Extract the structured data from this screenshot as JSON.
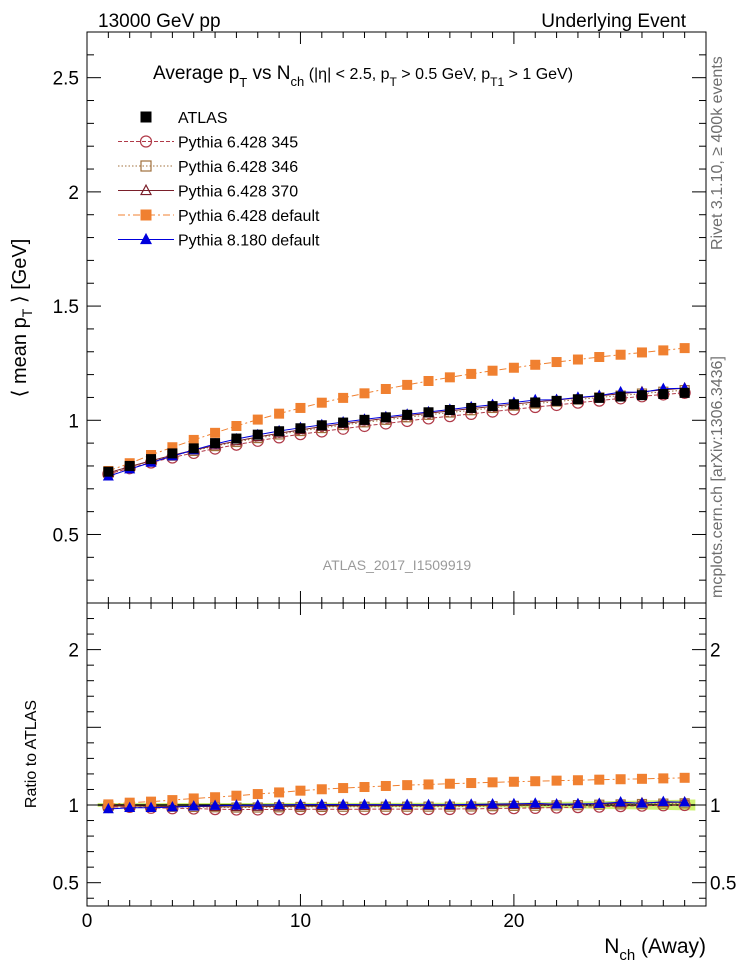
{
  "header": {
    "left": "13000 GeV pp",
    "right": "Underlying Event"
  },
  "side_labels": {
    "rivet": "Rivet 3.1.10, ≥ 400k events",
    "mcplots": "mcplots.cern.ch [arXiv:1306.3436]"
  },
  "watermark": "ATLAS_2017_I1509919",
  "chart_data": {
    "type": "line",
    "title": {
      "prefix": "Average p",
      "sub1": "T",
      "mid": " vs N",
      "sub2": "ch",
      "paren_a": " (|η| < 2.5, p",
      "sub3": "T",
      "paren_b": " > 0.5 GeV, p",
      "sub4": "T1",
      "paren_c": " > 1 GeV)"
    },
    "ylabel_main": "⟨ mean p",
    "ylabel_main_sub": "T",
    "ylabel_main_tail": " ⟩ [GeV]",
    "ylabel_ratio": "Ratio to ATLAS",
    "xlabel": "N",
    "xlabel_sub": "ch",
    "xlabel_tail": " (Away)",
    "xlim": [
      0,
      29
    ],
    "ylim_main": [
      0.2,
      2.7
    ],
    "ylim_ratio": [
      0.35,
      2.3
    ],
    "x_ticks": [
      "0",
      "10",
      "20"
    ],
    "y_ticks_main": [
      "0.5",
      "1",
      "1.5",
      "2",
      "2.5"
    ],
    "y_ticks_ratio": [
      "0.5",
      "1",
      "2"
    ],
    "x": [
      1,
      2,
      3,
      4,
      5,
      6,
      7,
      8,
      9,
      10,
      11,
      12,
      13,
      14,
      15,
      16,
      17,
      18,
      19,
      20,
      21,
      22,
      23,
      24,
      25,
      26,
      27,
      28
    ],
    "series": [
      {
        "name": "ATLAS",
        "marker": "square-filled",
        "color": "#000000",
        "line": "none",
        "values": [
          0.775,
          0.8,
          0.83,
          0.855,
          0.877,
          0.9,
          0.92,
          0.937,
          0.952,
          0.965,
          0.978,
          0.99,
          1.002,
          1.013,
          1.024,
          1.035,
          1.045,
          1.054,
          1.062,
          1.07,
          1.078,
          1.085,
          1.092,
          1.098,
          1.104,
          1.11,
          1.115,
          1.12
        ]
      },
      {
        "name": "Pythia 6.428 345",
        "marker": "circle-open",
        "color": "#b03a48",
        "line": "dashed",
        "values": [
          0.765,
          0.79,
          0.815,
          0.837,
          0.857,
          0.876,
          0.893,
          0.91,
          0.925,
          0.939,
          0.951,
          0.963,
          0.975,
          0.986,
          0.997,
          1.008,
          1.018,
          1.028,
          1.038,
          1.048,
          1.058,
          1.067,
          1.077,
          1.086,
          1.096,
          1.105,
          1.113,
          1.12
        ]
      },
      {
        "name": "Pythia 6.428 346",
        "marker": "square-open",
        "color": "#a0703c",
        "line": "dotted",
        "values": [
          0.77,
          0.796,
          0.821,
          0.845,
          0.866,
          0.887,
          0.905,
          0.922,
          0.938,
          0.953,
          0.966,
          0.979,
          0.991,
          1.002,
          1.013,
          1.024,
          1.034,
          1.044,
          1.054,
          1.064,
          1.073,
          1.082,
          1.091,
          1.1,
          1.108,
          1.117,
          1.125,
          1.132
        ]
      },
      {
        "name": "Pythia 6.428 370",
        "marker": "triangle-open",
        "color": "#7a1f2a",
        "line": "solid",
        "values": [
          0.77,
          0.797,
          0.823,
          0.847,
          0.869,
          0.89,
          0.909,
          0.927,
          0.943,
          0.958,
          0.972,
          0.985,
          0.997,
          1.009,
          1.02,
          1.031,
          1.041,
          1.051,
          1.061,
          1.071,
          1.08,
          1.089,
          1.098,
          1.107,
          1.116,
          1.125,
          1.133,
          1.141
        ]
      },
      {
        "name": "Pythia 6.428 default",
        "marker": "square-filled",
        "color": "#f08030",
        "line": "dashdot",
        "values": [
          0.778,
          0.812,
          0.848,
          0.882,
          0.914,
          0.945,
          0.975,
          1.003,
          1.029,
          1.054,
          1.077,
          1.098,
          1.118,
          1.137,
          1.155,
          1.172,
          1.188,
          1.203,
          1.217,
          1.23,
          1.243,
          1.255,
          1.266,
          1.277,
          1.287,
          1.297,
          1.306,
          1.316
        ]
      },
      {
        "name": "Pythia 8.180 default",
        "marker": "triangle-filled",
        "color": "#0000dd",
        "line": "solid",
        "values": [
          0.755,
          0.786,
          0.815,
          0.843,
          0.87,
          0.896,
          0.918,
          0.936,
          0.953,
          0.967,
          0.98,
          0.992,
          1.004,
          1.015,
          1.026,
          1.036,
          1.047,
          1.058,
          1.068,
          1.078,
          1.089,
          1.09,
          1.1,
          1.108,
          1.124,
          1.122,
          1.138,
          1.14
        ]
      }
    ],
    "legend_position": "top-left",
    "ratio_band_color": "#c8f060",
    "grid": false
  }
}
